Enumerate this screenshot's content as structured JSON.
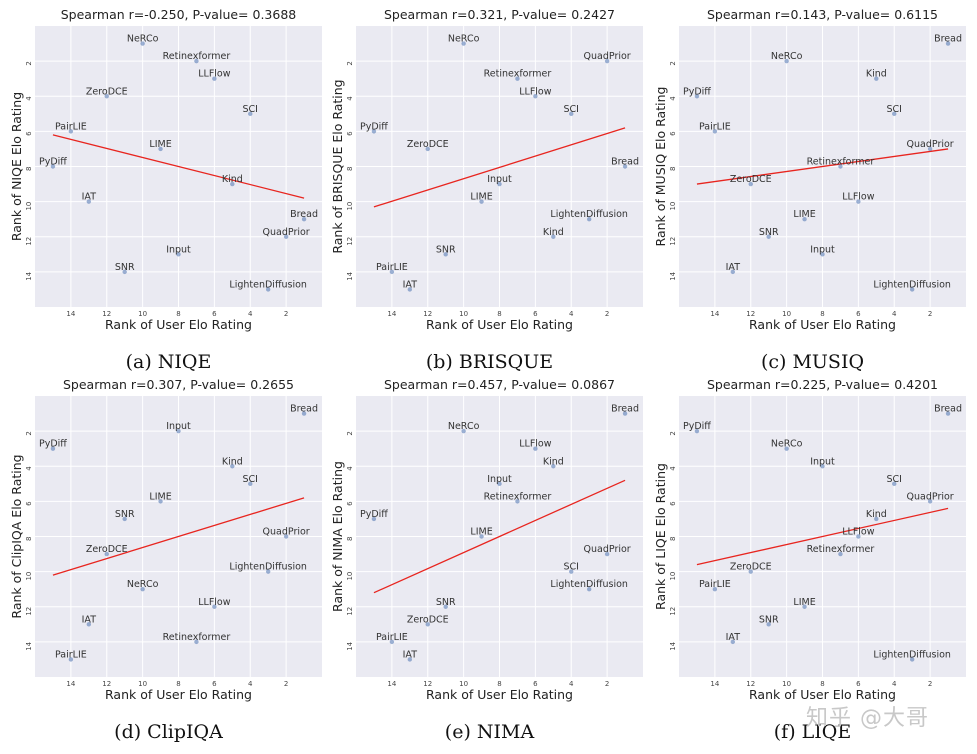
{
  "watermark": "知乎 @大哥",
  "chart_data": [
    {
      "type": "scatter",
      "caption": "(a) NIQE",
      "title": "Spearman r=-0.250, P-value= 0.3688",
      "xlabel": "Rank of User Elo Rating",
      "ylabel": "Rank of NIQE Elo Rating",
      "xlim": [
        16,
        0
      ],
      "ylim": [
        0,
        16
      ],
      "xticks": [
        14,
        12,
        10,
        8,
        6,
        4,
        2
      ],
      "yticks": [
        2,
        4,
        6,
        8,
        10,
        12,
        14
      ],
      "fit": {
        "x": [
          15,
          1
        ],
        "y": [
          6.2,
          9.8
        ]
      },
      "points": [
        {
          "label": "NeRCo",
          "x": 10,
          "y": 1
        },
        {
          "label": "Retinexformer",
          "x": 7,
          "y": 2
        },
        {
          "label": "LLFlow",
          "x": 6,
          "y": 3
        },
        {
          "label": "ZeroDCE",
          "x": 12,
          "y": 4
        },
        {
          "label": "SCI",
          "x": 4,
          "y": 5
        },
        {
          "label": "PairLIE",
          "x": 14,
          "y": 6
        },
        {
          "label": "LIME",
          "x": 9,
          "y": 7
        },
        {
          "label": "PyDiff",
          "x": 15,
          "y": 8
        },
        {
          "label": "Kind",
          "x": 5,
          "y": 9
        },
        {
          "label": "IAT",
          "x": 13,
          "y": 10
        },
        {
          "label": "Bread",
          "x": 1,
          "y": 11
        },
        {
          "label": "QuadPrior",
          "x": 2,
          "y": 12
        },
        {
          "label": "Input",
          "x": 8,
          "y": 13
        },
        {
          "label": "SNR",
          "x": 11,
          "y": 14
        },
        {
          "label": "LightenDiffusion",
          "x": 3,
          "y": 15
        }
      ]
    },
    {
      "type": "scatter",
      "caption": "(b) BRISQUE",
      "title": "Spearman r=0.321, P-value= 0.2427",
      "xlabel": "Rank of User Elo Rating",
      "ylabel": "Rank of BRISQUE Elo Rating",
      "xlim": [
        16,
        0
      ],
      "ylim": [
        0,
        16
      ],
      "xticks": [
        14,
        12,
        10,
        8,
        6,
        4,
        2
      ],
      "yticks": [
        2,
        4,
        6,
        8,
        10,
        12,
        14
      ],
      "fit": {
        "x": [
          15,
          1
        ],
        "y": [
          10.3,
          5.8
        ]
      },
      "points": [
        {
          "label": "NeRCo",
          "x": 10,
          "y": 1
        },
        {
          "label": "QuadPrior",
          "x": 2,
          "y": 2
        },
        {
          "label": "Retinexformer",
          "x": 7,
          "y": 3
        },
        {
          "label": "LLFlow",
          "x": 6,
          "y": 4
        },
        {
          "label": "SCI",
          "x": 4,
          "y": 5
        },
        {
          "label": "PyDiff",
          "x": 15,
          "y": 6
        },
        {
          "label": "ZeroDCE",
          "x": 12,
          "y": 7
        },
        {
          "label": "Bread",
          "x": 1,
          "y": 8
        },
        {
          "label": "Input",
          "x": 8,
          "y": 9
        },
        {
          "label": "LIME",
          "x": 9,
          "y": 10
        },
        {
          "label": "LightenDiffusion",
          "x": 3,
          "y": 11
        },
        {
          "label": "Kind",
          "x": 5,
          "y": 12
        },
        {
          "label": "SNR",
          "x": 11,
          "y": 13
        },
        {
          "label": "PairLIE",
          "x": 14,
          "y": 14
        },
        {
          "label": "IAT",
          "x": 13,
          "y": 15
        }
      ]
    },
    {
      "type": "scatter",
      "caption": "(c) MUSIQ",
      "title": "Spearman r=0.143, P-value= 0.6115",
      "xlabel": "Rank of User Elo Rating",
      "ylabel": "Rank of MUSIQ Elo Rating",
      "xlim": [
        16,
        0
      ],
      "ylim": [
        0,
        16
      ],
      "xticks": [
        14,
        12,
        10,
        8,
        6,
        4,
        2
      ],
      "yticks": [
        2,
        4,
        6,
        8,
        10,
        12,
        14
      ],
      "fit": {
        "x": [
          15,
          1
        ],
        "y": [
          9.0,
          7.0
        ]
      },
      "points": [
        {
          "label": "Bread",
          "x": 1,
          "y": 1
        },
        {
          "label": "NeRCo",
          "x": 10,
          "y": 2
        },
        {
          "label": "Kind",
          "x": 5,
          "y": 3
        },
        {
          "label": "PyDiff",
          "x": 15,
          "y": 4
        },
        {
          "label": "SCI",
          "x": 4,
          "y": 5
        },
        {
          "label": "PairLIE",
          "x": 14,
          "y": 6
        },
        {
          "label": "QuadPrior",
          "x": 2,
          "y": 7
        },
        {
          "label": "Retinexformer",
          "x": 7,
          "y": 8
        },
        {
          "label": "ZeroDCE",
          "x": 12,
          "y": 9
        },
        {
          "label": "LLFlow",
          "x": 6,
          "y": 10
        },
        {
          "label": "LIME",
          "x": 9,
          "y": 11
        },
        {
          "label": "SNR",
          "x": 11,
          "y": 12
        },
        {
          "label": "Input",
          "x": 8,
          "y": 13
        },
        {
          "label": "IAT",
          "x": 13,
          "y": 14
        },
        {
          "label": "LightenDiffusion",
          "x": 3,
          "y": 15
        }
      ]
    },
    {
      "type": "scatter",
      "caption": "(d) ClipIQA",
      "title": "Spearman r=0.307, P-value= 0.2655",
      "xlabel": "Rank of User Elo Rating",
      "ylabel": "Rank of ClipIQA Elo Rating",
      "xlim": [
        16,
        0
      ],
      "ylim": [
        0,
        16
      ],
      "xticks": [
        14,
        12,
        10,
        8,
        6,
        4,
        2
      ],
      "yticks": [
        2,
        4,
        6,
        8,
        10,
        12,
        14
      ],
      "fit": {
        "x": [
          15,
          1
        ],
        "y": [
          10.2,
          5.8
        ]
      },
      "points": [
        {
          "label": "Bread",
          "x": 1,
          "y": 1
        },
        {
          "label": "Input",
          "x": 8,
          "y": 2
        },
        {
          "label": "PyDiff",
          "x": 15,
          "y": 3
        },
        {
          "label": "Kind",
          "x": 5,
          "y": 4
        },
        {
          "label": "SCI",
          "x": 4,
          "y": 5
        },
        {
          "label": "LIME",
          "x": 9,
          "y": 6
        },
        {
          "label": "SNR",
          "x": 11,
          "y": 7
        },
        {
          "label": "QuadPrior",
          "x": 2,
          "y": 8
        },
        {
          "label": "ZeroDCE",
          "x": 12,
          "y": 9
        },
        {
          "label": "LightenDiffusion",
          "x": 3,
          "y": 10
        },
        {
          "label": "NeRCo",
          "x": 10,
          "y": 11
        },
        {
          "label": "LLFlow",
          "x": 6,
          "y": 12
        },
        {
          "label": "IAT",
          "x": 13,
          "y": 13
        },
        {
          "label": "Retinexformer",
          "x": 7,
          "y": 14
        },
        {
          "label": "PairLIE",
          "x": 14,
          "y": 15
        }
      ]
    },
    {
      "type": "scatter",
      "caption": "(e) NIMA",
      "title": "Spearman r=0.457, P-value= 0.0867",
      "xlabel": "Rank of User Elo Rating",
      "ylabel": "Rank of NIMA Elo Rating",
      "xlim": [
        16,
        0
      ],
      "ylim": [
        0,
        16
      ],
      "xticks": [
        14,
        12,
        10,
        8,
        6,
        4,
        2
      ],
      "yticks": [
        2,
        4,
        6,
        8,
        10,
        12,
        14
      ],
      "fit": {
        "x": [
          15,
          1
        ],
        "y": [
          11.2,
          4.8
        ]
      },
      "points": [
        {
          "label": "Bread",
          "x": 1,
          "y": 1
        },
        {
          "label": "NeRCo",
          "x": 10,
          "y": 2
        },
        {
          "label": "LLFlow",
          "x": 6,
          "y": 3
        },
        {
          "label": "Kind",
          "x": 5,
          "y": 4
        },
        {
          "label": "Input",
          "x": 8,
          "y": 5
        },
        {
          "label": "Retinexformer",
          "x": 7,
          "y": 6
        },
        {
          "label": "PyDiff",
          "x": 15,
          "y": 7
        },
        {
          "label": "LIME",
          "x": 9,
          "y": 8
        },
        {
          "label": "QuadPrior",
          "x": 2,
          "y": 9
        },
        {
          "label": "SCI",
          "x": 4,
          "y": 10
        },
        {
          "label": "LightenDiffusion",
          "x": 3,
          "y": 11
        },
        {
          "label": "SNR",
          "x": 11,
          "y": 12
        },
        {
          "label": "ZeroDCE",
          "x": 12,
          "y": 13
        },
        {
          "label": "PairLIE",
          "x": 14,
          "y": 14
        },
        {
          "label": "IAT",
          "x": 13,
          "y": 15
        }
      ]
    },
    {
      "type": "scatter",
      "caption": "(f) LIQE",
      "title": "Spearman r=0.225, P-value= 0.4201",
      "xlabel": "Rank of User Elo Rating",
      "ylabel": "Rank of LIQE Elo Rating",
      "xlim": [
        16,
        0
      ],
      "ylim": [
        0,
        16
      ],
      "xticks": [
        14,
        12,
        10,
        8,
        6,
        4,
        2
      ],
      "yticks": [
        2,
        4,
        6,
        8,
        10,
        12,
        14
      ],
      "fit": {
        "x": [
          15,
          1
        ],
        "y": [
          9.6,
          6.4
        ]
      },
      "points": [
        {
          "label": "Bread",
          "x": 1,
          "y": 1
        },
        {
          "label": "PyDiff",
          "x": 15,
          "y": 2
        },
        {
          "label": "NeRCo",
          "x": 10,
          "y": 3
        },
        {
          "label": "Input",
          "x": 8,
          "y": 4
        },
        {
          "label": "SCI",
          "x": 4,
          "y": 5
        },
        {
          "label": "QuadPrior",
          "x": 2,
          "y": 6
        },
        {
          "label": "Kind",
          "x": 5,
          "y": 7
        },
        {
          "label": "LLFlow",
          "x": 6,
          "y": 8
        },
        {
          "label": "Retinexformer",
          "x": 7,
          "y": 9
        },
        {
          "label": "ZeroDCE",
          "x": 12,
          "y": 10
        },
        {
          "label": "PairLIE",
          "x": 14,
          "y": 11
        },
        {
          "label": "LIME",
          "x": 9,
          "y": 12
        },
        {
          "label": "SNR",
          "x": 11,
          "y": 13
        },
        {
          "label": "IAT",
          "x": 13,
          "y": 14
        },
        {
          "label": "LightenDiffusion",
          "x": 3,
          "y": 15
        }
      ]
    }
  ]
}
